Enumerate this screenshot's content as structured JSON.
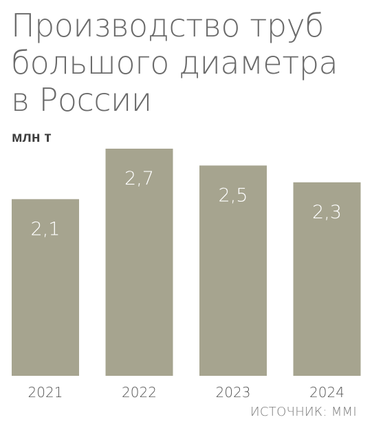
{
  "title_lines": [
    "Производство труб",
    "большого диаметра",
    "в России"
  ],
  "unit": "млн т",
  "source": "ИСТОЧНИК: ММI",
  "colors": {
    "bar": "#a6a48f",
    "bar_label": "#ffffff",
    "tick": "#555555",
    "title": "#6a6a6a"
  },
  "chart_data": {
    "type": "bar",
    "title": "Производство труб большого диаметра в России",
    "ylabel": "млн т",
    "xlabel": "",
    "categories": [
      "2021",
      "2022",
      "2023",
      "2024"
    ],
    "values": [
      2.1,
      2.7,
      2.5,
      2.3
    ],
    "value_labels": [
      "2,1",
      "2,7",
      "2,5",
      "2,3"
    ],
    "ylim": [
      0,
      2.7
    ],
    "grid": false,
    "legend": "none"
  }
}
